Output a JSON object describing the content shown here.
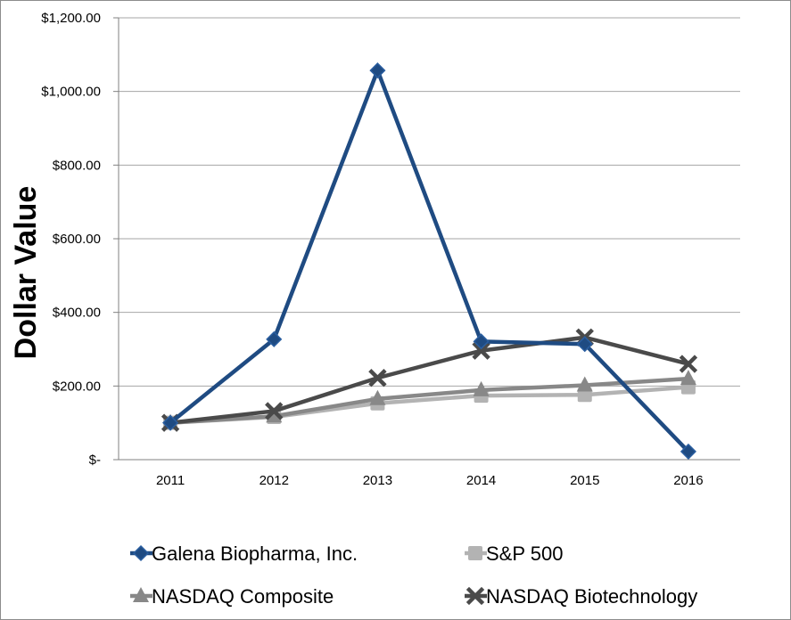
{
  "chart_data": {
    "type": "line",
    "title": "",
    "xlabel": "",
    "ylabel": "Dollar Value",
    "categories": [
      "2011",
      "2012",
      "2013",
      "2014",
      "2015",
      "2016"
    ],
    "ylim": [
      0,
      1200
    ],
    "y_ticks": [
      {
        "value": 0,
        "label": "$-"
      },
      {
        "value": 200,
        "label": "$200.00"
      },
      {
        "value": 400,
        "label": "$400.00"
      },
      {
        "value": 600,
        "label": "$600.00"
      },
      {
        "value": 800,
        "label": "$800.00"
      },
      {
        "value": 1000,
        "label": "$1,000.00"
      },
      {
        "value": 1200,
        "label": "$1,200.00"
      }
    ],
    "grid": true,
    "legend_position": "bottom",
    "series": [
      {
        "name": "Galena Biopharma, Inc.",
        "marker": "diamond",
        "color": "#1f4b82",
        "values": [
          100,
          327,
          1057,
          321,
          314,
          22
        ]
      },
      {
        "name": "S&P 500",
        "marker": "square",
        "color": "#b3b3b3",
        "values": [
          100,
          116,
          153,
          174,
          176,
          197
        ]
      },
      {
        "name": "NASDAQ Composite",
        "marker": "triangle",
        "color": "#888888",
        "values": [
          100,
          118,
          165,
          189,
          202,
          220
        ]
      },
      {
        "name": "NASDAQ Biotechnology",
        "marker": "x",
        "color": "#4a4a4a",
        "values": [
          100,
          132,
          222,
          296,
          332,
          260
        ]
      }
    ]
  }
}
